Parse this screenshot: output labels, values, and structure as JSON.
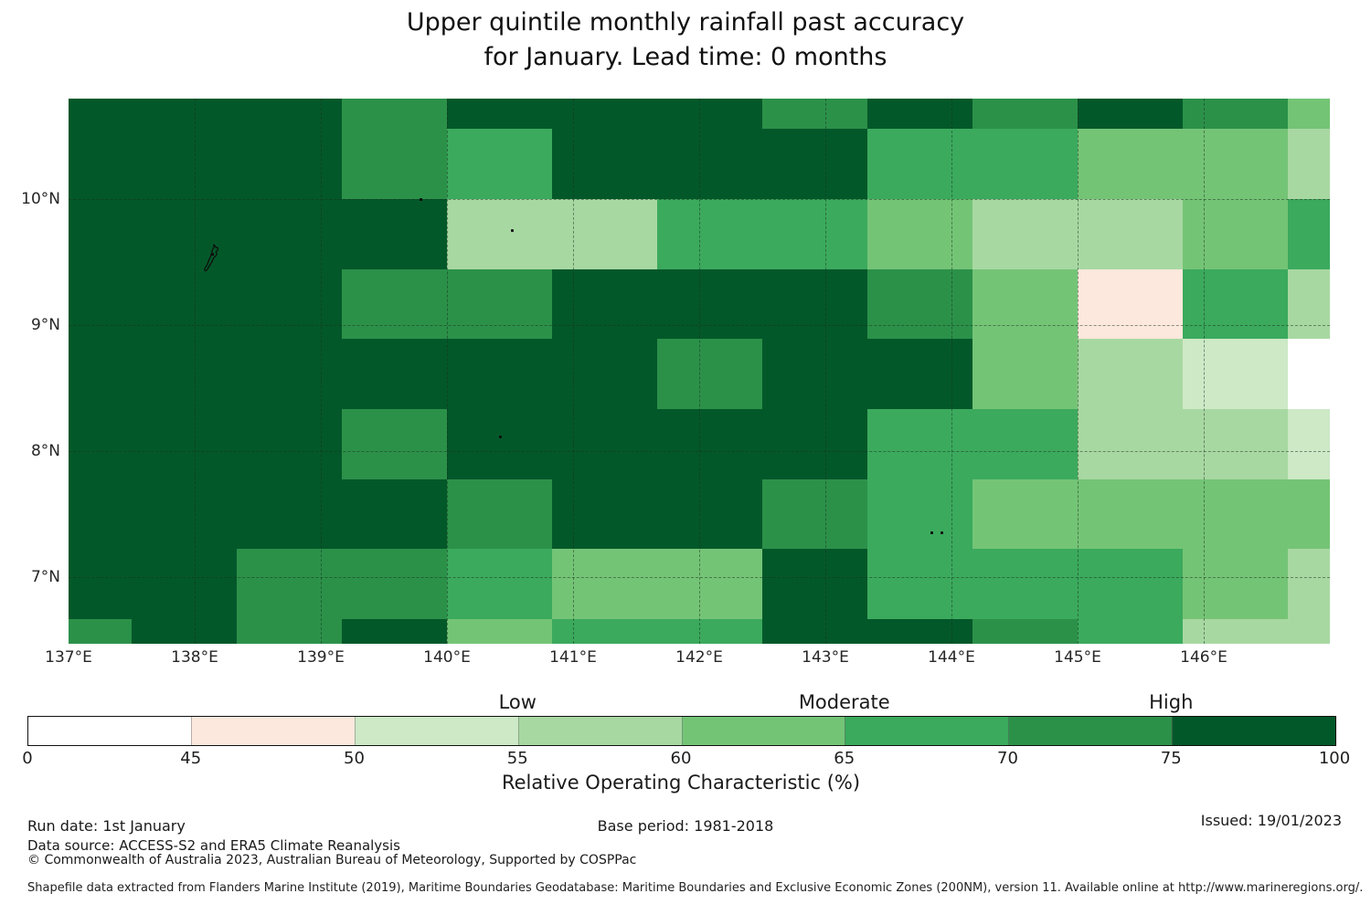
{
  "title": {
    "line1": "Upper quintile monthly rainfall past accuracy",
    "line2": "for January. Lead time: 0 months"
  },
  "chart_data": {
    "type": "heatmap",
    "title": "Upper quintile monthly rainfall past accuracy for January. Lead time: 0 months",
    "x_axis": {
      "ticks": [
        {
          "label": "137°E",
          "lon": 137
        },
        {
          "label": "138°E",
          "lon": 138
        },
        {
          "label": "139°E",
          "lon": 139
        },
        {
          "label": "140°E",
          "lon": 140
        },
        {
          "label": "141°E",
          "lon": 141
        },
        {
          "label": "142°E",
          "lon": 142
        },
        {
          "label": "143°E",
          "lon": 143
        },
        {
          "label": "144°E",
          "lon": 144
        },
        {
          "label": "145°E",
          "lon": 145
        },
        {
          "label": "146°E",
          "lon": 146
        }
      ]
    },
    "y_axis": {
      "ticks": [
        {
          "label": "10°N",
          "lat": 10
        },
        {
          "label": "9°N",
          "lat": 9
        },
        {
          "label": "8°N",
          "lat": 8
        },
        {
          "label": "7°N",
          "lat": 7
        }
      ]
    },
    "grid": {
      "note": "values are colorbar bin indices 1-8 (1 = 0-45%, 8 = 75-100% ROC)",
      "lon_edges": [
        137.0,
        137.5,
        138.333,
        139.167,
        140.0,
        140.833,
        141.667,
        142.5,
        143.333,
        144.167,
        145.0,
        145.833,
        146.667,
        147.0
      ],
      "lat_edges": [
        10.797,
        10.556,
        10.0,
        9.444,
        8.889,
        8.333,
        7.778,
        7.222,
        6.667,
        6.471
      ],
      "values": [
        [
          8,
          8,
          8,
          7,
          8,
          8,
          8,
          7,
          8,
          7,
          8,
          7,
          5
        ],
        [
          8,
          8,
          8,
          7,
          6,
          8,
          8,
          8,
          6,
          6,
          5,
          5,
          4
        ],
        [
          8,
          8,
          8,
          8,
          4,
          4,
          6,
          6,
          5,
          4,
          4,
          5,
          6
        ],
        [
          8,
          8,
          8,
          7,
          7,
          8,
          8,
          8,
          7,
          5,
          2,
          6,
          4
        ],
        [
          8,
          8,
          8,
          8,
          8,
          8,
          7,
          8,
          8,
          5,
          4,
          3,
          1
        ],
        [
          8,
          8,
          8,
          7,
          8,
          8,
          8,
          8,
          6,
          6,
          4,
          4,
          3
        ],
        [
          8,
          8,
          8,
          8,
          7,
          8,
          8,
          7,
          6,
          5,
          5,
          5,
          5
        ],
        [
          8,
          8,
          7,
          7,
          6,
          5,
          5,
          8,
          6,
          6,
          6,
          5,
          4
        ],
        [
          7,
          8,
          7,
          8,
          5,
          6,
          6,
          8,
          8,
          7,
          6,
          4,
          4
        ]
      ]
    },
    "islands": [
      {
        "kind": "outline",
        "lon": 138.14,
        "lat": 9.51
      },
      {
        "kind": "dot",
        "lon": 139.78,
        "lat": 10.01
      },
      {
        "kind": "dot",
        "lon": 140.51,
        "lat": 9.76
      },
      {
        "kind": "dot",
        "lon": 140.41,
        "lat": 8.12
      },
      {
        "kind": "dot",
        "lon": 143.83,
        "lat": 7.36
      },
      {
        "kind": "dot",
        "lon": 143.91,
        "lat": 7.36
      }
    ],
    "colorbar": {
      "axis_label": "Relative Operating Characteristic (%)",
      "tick_labels": [
        "0",
        "45",
        "50",
        "55",
        "60",
        "65",
        "70",
        "75",
        "100"
      ],
      "tick_values": [
        0,
        45,
        50,
        55,
        60,
        65,
        70,
        75,
        100
      ],
      "bins": [
        {
          "range": "0-45",
          "color": "#ffffff"
        },
        {
          "range": "45-50",
          "color": "#fce8dc"
        },
        {
          "range": "50-55",
          "color": "#cde9c6"
        },
        {
          "range": "55-60",
          "color": "#a8d8a2"
        },
        {
          "range": "60-65",
          "color": "#74c476"
        },
        {
          "range": "65-70",
          "color": "#3baa5d"
        },
        {
          "range": "70-75",
          "color": "#2b9149"
        },
        {
          "range": "75-100",
          "color": "#035829"
        }
      ],
      "category_labels": [
        {
          "text": "Low",
          "value": 55
        },
        {
          "text": "Moderate",
          "value": 65
        },
        {
          "text": "High",
          "value": 75
        }
      ]
    }
  },
  "footer": {
    "run_date": "Run date: 1st January",
    "data_source": "Data source: ACCESS-S2 and ERA5 Climate Reanalysis",
    "copyright": "© Commonwealth of Australia 2023, Australian Bureau of Meteorology, Supported by COSPPac",
    "base_period": "Base period: 1981-2018",
    "issued": "Issued: 19/01/2023",
    "shapefile": "Shapefile data extracted from Flanders Marine Institute (2019), Maritime Boundaries Geodatabase: Maritime Boundaries and Exclusive Economic Zones (200NM), version 11. Available online at http://www.marineregions.org/."
  }
}
